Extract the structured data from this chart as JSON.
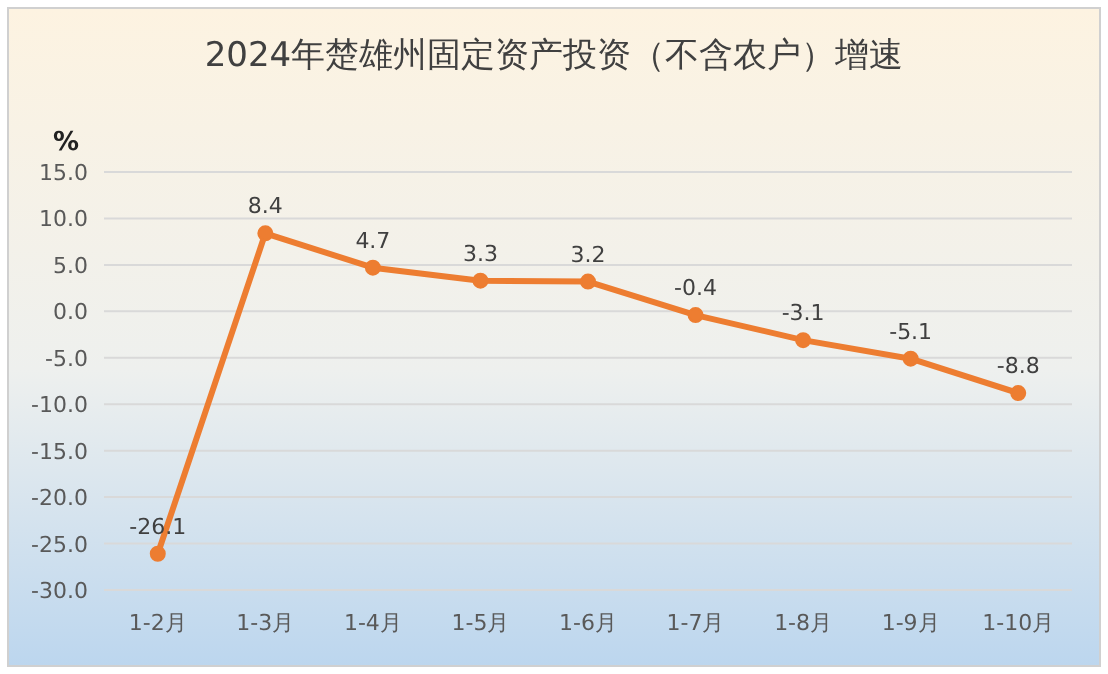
{
  "chart_data": {
    "type": "line",
    "title": "2024年楚雄州固定资产投资（不含农户）增速",
    "ylabel": "%",
    "categories": [
      "1-2月",
      "1-3月",
      "1-4月",
      "1-5月",
      "1-6月",
      "1-7月",
      "1-8月",
      "1-9月",
      "1-10月"
    ],
    "series": [
      {
        "color": "#ed7d31",
        "values": [
          -26.1,
          8.4,
          4.7,
          3.3,
          3.2,
          -0.4,
          -3.1,
          -5.1,
          -8.8
        ]
      }
    ],
    "ylim": [
      -30,
      15
    ],
    "yticks": [
      {
        "value": -30,
        "label": "-30.0"
      },
      {
        "value": -25,
        "label": "-25.0"
      },
      {
        "value": -20,
        "label": "-20.0"
      },
      {
        "value": -15,
        "label": "-15.0"
      },
      {
        "value": -10,
        "label": "-10.0"
      },
      {
        "value": -5,
        "label": "-5.0"
      },
      {
        "value": 0,
        "label": "0.0"
      },
      {
        "value": 5,
        "label": "5.0"
      },
      {
        "value": 10,
        "label": "10.0"
      },
      {
        "value": 15,
        "label": "15.0"
      }
    ],
    "grid": "y",
    "marker": "circle",
    "data_labels": true
  }
}
